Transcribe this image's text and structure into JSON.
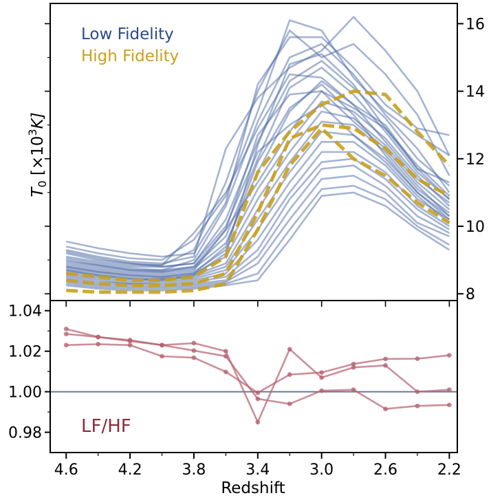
{
  "chart_data": [
    {
      "type": "line",
      "panel": "top",
      "ylabel": "T_0 [×10³K]",
      "ylabel_main": "T",
      "ylabel_sub": "0",
      "ylabel_rest": " [×10",
      "ylabel_sup": "3",
      "ylabel_unit": "K]",
      "xlim": [
        4.7,
        2.15
      ],
      "ylim": [
        7.8,
        16.6
      ],
      "yaxis_side": "right",
      "yticks": [
        8,
        10,
        12,
        14,
        16
      ],
      "ytick_labels": [
        "8",
        "10",
        "12",
        "14",
        "16"
      ],
      "legend_placement": "top-left",
      "legend": [
        {
          "label": "Low Fidelity",
          "color": "#2a4a8c"
        },
        {
          "label": "High Fidelity",
          "color": "#c9a01c"
        }
      ],
      "x": [
        4.6,
        4.4,
        4.2,
        4.0,
        3.8,
        3.6,
        3.4,
        3.2,
        3.0,
        2.8,
        2.6,
        2.4,
        2.2
      ],
      "low_fidelity_color": "#4c6aa6",
      "low_fidelity_series": [
        [
          9.55,
          9.35,
          9.2,
          9.1,
          9.2,
          10.7,
          14.2,
          15.6,
          15.6,
          14.7,
          13.6,
          12.9,
          12.7
        ],
        [
          9.4,
          9.2,
          9.05,
          9.0,
          9.6,
          10.9,
          13.4,
          16.1,
          15.8,
          14.4,
          13.4,
          12.7,
          12.1
        ],
        [
          9.3,
          9.1,
          8.95,
          8.9,
          9.1,
          12.3,
          13.8,
          14.7,
          15.2,
          16.2,
          15.2,
          14.0,
          12.1
        ],
        [
          9.2,
          9.0,
          8.9,
          8.85,
          9.3,
          11.3,
          14.0,
          15.8,
          15.0,
          15.4,
          14.5,
          13.3,
          11.5
        ],
        [
          9.1,
          8.95,
          8.85,
          8.85,
          9.8,
          11.0,
          12.9,
          14.5,
          14.4,
          13.6,
          13.0,
          11.7,
          10.8
        ],
        [
          9.05,
          8.9,
          8.8,
          8.8,
          8.9,
          10.2,
          12.5,
          14.3,
          14.9,
          14.1,
          13.2,
          12.0,
          11.2
        ],
        [
          8.95,
          8.85,
          8.75,
          8.7,
          9.0,
          10.6,
          13.1,
          15.0,
          15.4,
          14.5,
          13.3,
          12.3,
          11.0
        ],
        [
          8.9,
          8.8,
          8.7,
          8.7,
          8.8,
          9.7,
          12.0,
          14.1,
          14.7,
          13.9,
          12.8,
          11.6,
          10.8
        ],
        [
          8.85,
          8.75,
          8.65,
          8.65,
          8.75,
          9.5,
          11.6,
          13.4,
          14.3,
          13.6,
          12.5,
          11.4,
          10.7
        ],
        [
          8.8,
          8.7,
          8.6,
          8.6,
          8.7,
          9.9,
          11.3,
          12.8,
          14.0,
          13.5,
          12.9,
          11.8,
          10.9
        ],
        [
          8.75,
          8.65,
          8.55,
          8.55,
          8.65,
          9.3,
          11.1,
          12.5,
          13.7,
          13.4,
          12.6,
          11.5,
          10.6
        ],
        [
          8.7,
          8.6,
          8.5,
          8.5,
          8.6,
          9.1,
          10.8,
          12.2,
          13.4,
          13.2,
          12.4,
          11.3,
          10.5
        ],
        [
          8.65,
          8.55,
          8.45,
          8.45,
          8.55,
          8.9,
          10.5,
          11.9,
          13.1,
          13.0,
          12.2,
          11.1,
          10.4
        ],
        [
          8.6,
          8.5,
          8.4,
          8.45,
          8.5,
          8.8,
          10.2,
          11.6,
          12.8,
          12.7,
          12.0,
          11.0,
          10.3
        ],
        [
          8.55,
          8.45,
          8.35,
          8.4,
          8.45,
          8.7,
          9.9,
          11.3,
          12.5,
          12.5,
          11.8,
          10.8,
          10.2
        ],
        [
          8.5,
          8.4,
          8.3,
          8.35,
          8.4,
          8.6,
          9.6,
          11.0,
          12.2,
          12.2,
          11.6,
          10.6,
          10.0
        ],
        [
          8.45,
          8.35,
          8.3,
          8.3,
          8.35,
          8.5,
          9.3,
          10.8,
          11.9,
          12.0,
          11.4,
          10.5,
          9.9
        ],
        [
          8.4,
          8.3,
          8.25,
          8.25,
          8.3,
          8.4,
          9.1,
          10.5,
          11.7,
          11.8,
          11.2,
          10.3,
          9.8
        ],
        [
          8.35,
          8.25,
          8.2,
          8.2,
          8.25,
          8.35,
          8.9,
          10.2,
          11.4,
          11.5,
          11.0,
          10.1,
          9.7
        ],
        [
          8.3,
          8.2,
          8.15,
          8.15,
          8.2,
          8.3,
          8.6,
          9.9,
          11.1,
          11.2,
          10.8,
          10.0,
          9.45
        ],
        [
          8.25,
          8.15,
          8.1,
          8.1,
          8.15,
          8.25,
          8.4,
          9.6,
          10.9,
          11.0,
          10.6,
          9.9,
          9.3
        ],
        [
          9.0,
          8.85,
          8.7,
          8.65,
          8.8,
          9.9,
          12.7,
          13.9,
          14.0,
          13.1,
          12.3,
          11.2,
          10.3
        ],
        [
          8.8,
          8.65,
          8.55,
          8.5,
          8.6,
          9.4,
          11.9,
          13.5,
          14.2,
          13.3,
          12.1,
          11.0,
          10.2
        ],
        [
          8.7,
          8.55,
          8.45,
          8.4,
          8.55,
          9.2,
          12.4,
          14.8,
          15.1,
          14.2,
          12.9,
          11.7,
          11.3
        ],
        [
          9.25,
          9.05,
          8.9,
          8.8,
          8.9,
          10.0,
          12.2,
          13.0,
          13.6,
          12.7,
          11.9,
          10.9,
          10.1
        ]
      ],
      "high_fidelity_color": "#c9a01c",
      "high_fidelity_series": [
        [
          8.6,
          8.5,
          8.4,
          8.4,
          8.5,
          9.1,
          11.6,
          12.8,
          13.6,
          14.0,
          13.9,
          12.8,
          11.8
        ],
        [
          8.4,
          8.3,
          8.25,
          8.25,
          8.3,
          8.6,
          10.4,
          12.6,
          13.0,
          12.9,
          12.3,
          11.4,
          10.9
        ],
        [
          8.1,
          8.05,
          8.05,
          8.05,
          8.1,
          8.3,
          9.9,
          11.8,
          12.9,
          12.0,
          11.5,
          10.7,
          10.1
        ]
      ]
    },
    {
      "type": "line",
      "panel": "bottom",
      "xlabel": "Redshift",
      "annotation": "LF/HF",
      "annotation_color": "#8b2a3a",
      "xlim": [
        4.7,
        2.15
      ],
      "ylim": [
        0.97,
        1.045
      ],
      "xticks": [
        4.6,
        4.2,
        3.8,
        3.4,
        3.0,
        2.6,
        2.2
      ],
      "xtick_labels": [
        "4.6",
        "4.2",
        "3.8",
        "3.4",
        "3.0",
        "2.6",
        "2.2"
      ],
      "yticks": [
        0.98,
        1.0,
        1.02,
        1.04
      ],
      "ytick_labels": [
        "0.98",
        "1.00",
        "1.02",
        "1.04"
      ],
      "reference_line": 1.0,
      "reference_line_color": "#6b7a8c",
      "x": [
        4.6,
        4.4,
        4.2,
        4.0,
        3.8,
        3.6,
        3.4,
        3.2,
        3.0,
        2.8,
        2.6,
        2.4,
        2.2
      ],
      "ratio_color": "#b5606e",
      "ratio_series": [
        [
          1.031,
          1.027,
          1.025,
          1.023,
          1.024,
          1.02,
          0.985,
          1.021,
          1.007,
          1.012,
          1.013,
          null,
          null
        ],
        [
          1.023,
          1.0235,
          1.023,
          1.0175,
          1.0168,
          1.0098,
          0.9995,
          1.0085,
          1.0095,
          1.0137,
          1.0162,
          1.0163,
          1.018
        ],
        [
          1.0285,
          1.027,
          1.0255,
          1.023,
          1.0203,
          1.0175,
          0.9965,
          0.994,
          1.0005,
          1.001,
          0.9915,
          0.993,
          0.9935
        ]
      ],
      "ratio_series_tail": [
        [
          2.6,
          1.013
        ],
        [
          2.4,
          1.0
        ],
        [
          2.2,
          1.001
        ]
      ]
    }
  ]
}
